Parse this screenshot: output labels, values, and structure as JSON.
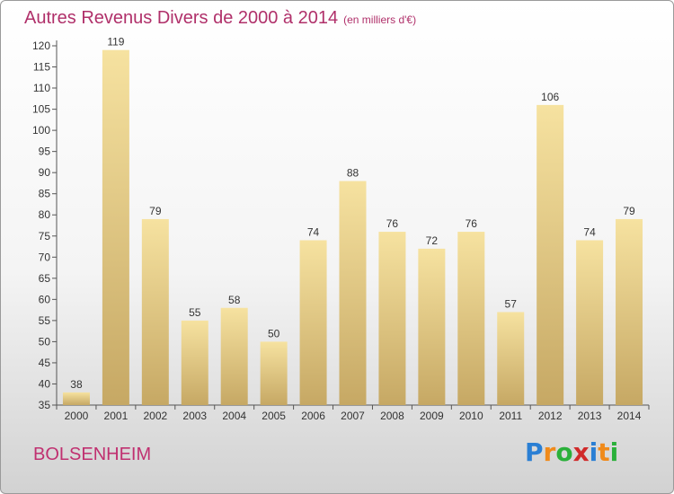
{
  "title": "Autres Revenus Divers de 2000 à 2014",
  "subtitle": "(en milliers d'€)",
  "location": "BOLSENHEIM",
  "logo": {
    "letters": [
      "P",
      "r",
      "o",
      "x",
      "i",
      "t",
      "i"
    ],
    "colors": [
      "#2a7fd4",
      "#f08a1a",
      "#2ab03a",
      "#d02a2a",
      "#2a7fd4",
      "#f08a1a",
      "#2ab03a"
    ]
  },
  "colors": {
    "bar_light": "#f6e2a0",
    "bar_dark": "#c6a864",
    "title": "#b0306a",
    "location": "#c03070"
  },
  "chart_data": {
    "type": "bar",
    "categories": [
      "2000",
      "2001",
      "2002",
      "2003",
      "2004",
      "2005",
      "2006",
      "2007",
      "2008",
      "2009",
      "2010",
      "2011",
      "2012",
      "2013",
      "2014"
    ],
    "values": [
      38,
      119,
      79,
      55,
      58,
      50,
      74,
      88,
      76,
      72,
      76,
      57,
      106,
      74,
      79
    ],
    "ylim": [
      35,
      120
    ],
    "yticks": [
      35,
      40,
      45,
      50,
      55,
      60,
      65,
      70,
      75,
      80,
      85,
      90,
      95,
      100,
      105,
      110,
      115,
      120
    ],
    "title": "Autres Revenus Divers de 2000 à 2014",
    "xlabel": "",
    "ylabel": "",
    "grid": false,
    "legend": "none"
  }
}
